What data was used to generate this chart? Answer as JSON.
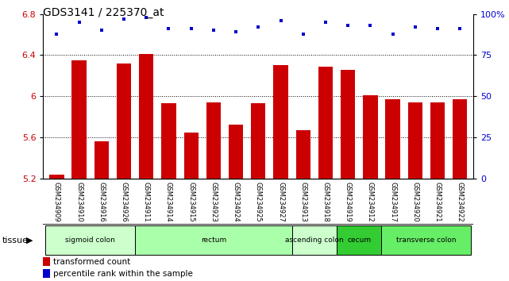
{
  "title": "GDS3141 / 225370_at",
  "samples": [
    "GSM234909",
    "GSM234910",
    "GSM234916",
    "GSM234926",
    "GSM234911",
    "GSM234914",
    "GSM234915",
    "GSM234923",
    "GSM234924",
    "GSM234925",
    "GSM234927",
    "GSM234913",
    "GSM234918",
    "GSM234919",
    "GSM234912",
    "GSM234917",
    "GSM234920",
    "GSM234921",
    "GSM234922"
  ],
  "bar_values": [
    5.24,
    6.35,
    5.56,
    6.32,
    6.41,
    5.93,
    5.65,
    5.94,
    5.72,
    5.93,
    6.3,
    5.67,
    6.29,
    6.26,
    6.01,
    5.97,
    5.94,
    5.94,
    5.97
  ],
  "percentile_values": [
    88,
    95,
    90,
    97,
    98,
    91,
    91,
    90,
    89,
    92,
    96,
    88,
    95,
    93,
    93,
    88,
    92,
    91,
    91
  ],
  "bar_color": "#cc0000",
  "dot_color": "#0000cc",
  "ylim_left": [
    5.2,
    6.8
  ],
  "ylim_right": [
    0,
    100
  ],
  "yticks_left": [
    5.2,
    5.6,
    6.0,
    6.4,
    6.8
  ],
  "ytick_labels_left": [
    "5.2",
    "5.6",
    "6",
    "6.4",
    "6.8"
  ],
  "yticks_right": [
    0,
    25,
    50,
    75,
    100
  ],
  "ytick_labels_right": [
    "0",
    "25",
    "50",
    "75",
    "100%"
  ],
  "grid_values": [
    5.6,
    6.0,
    6.4
  ],
  "tissue_groups": [
    {
      "label": "sigmoid colon",
      "start": 0,
      "end": 3,
      "color": "#ccffcc"
    },
    {
      "label": "rectum",
      "start": 4,
      "end": 10,
      "color": "#aaffaa"
    },
    {
      "label": "ascending colon",
      "start": 11,
      "end": 12,
      "color": "#ccffcc"
    },
    {
      "label": "cecum",
      "start": 13,
      "end": 14,
      "color": "#44dd44"
    },
    {
      "label": "transverse colon",
      "start": 15,
      "end": 18,
      "color": "#66ee66"
    }
  ],
  "legend_bar_label": "transformed count",
  "legend_dot_label": "percentile rank within the sample",
  "tissue_label": "tissue",
  "tick_area_color": "#c8c8c8"
}
